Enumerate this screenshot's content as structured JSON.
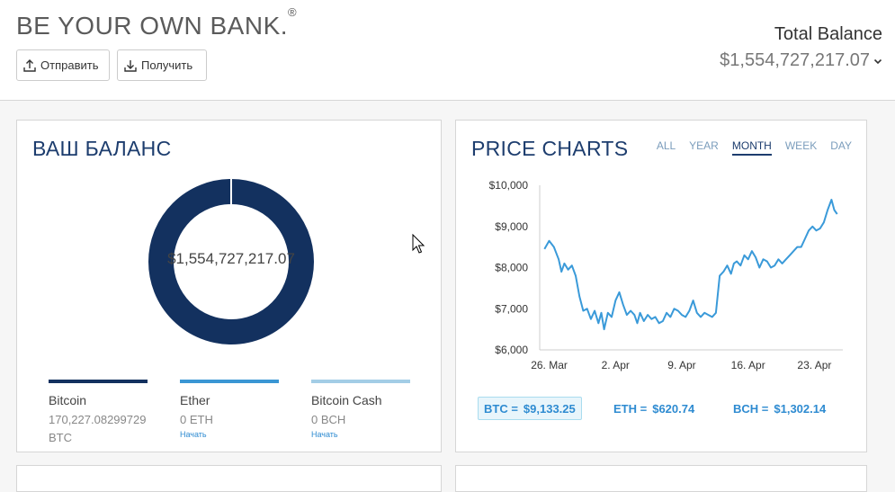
{
  "header": {
    "brand": "BE YOUR OWN BANK.",
    "brand_mark": "®",
    "send_label": "Отправить",
    "receive_label": "Получить",
    "total_balance_label": "Total Balance",
    "total_balance_value": "$1,554,727,217.07"
  },
  "balance_card": {
    "title": "ВАШ БАЛАНС",
    "donut_value": "$1,554,727,217.07",
    "assets": [
      {
        "name": "Bitcoin",
        "amount": "170,227.08299729",
        "unit": "BTC",
        "color": "#13315f",
        "share": 1.0,
        "link": ""
      },
      {
        "name": "Ether",
        "amount": "0",
        "unit": "ETH",
        "color": "#3a96d4",
        "share": 0.0,
        "link": "Начать"
      },
      {
        "name": "Bitcoin Cash",
        "amount": "0",
        "unit": "BCH",
        "color": "#a3cde6",
        "share": 0.0,
        "link": "Начать"
      }
    ]
  },
  "price_card": {
    "title": "PRICE CHARTS",
    "tabs": [
      "ALL",
      "YEAR",
      "MONTH",
      "WEEK",
      "DAY"
    ],
    "active_tab": "MONTH",
    "prices": {
      "btc_label": "BTC =",
      "btc_value": "$9,133.25",
      "eth_label": "ETH =",
      "eth_value": "$620.74",
      "bch_label": "BCH =",
      "bch_value": "$1,302.14"
    }
  },
  "chart_data": {
    "type": "line",
    "title": "",
    "xlabel": "",
    "ylabel": "",
    "ylim": [
      6000,
      10000
    ],
    "y_ticks": [
      "$6,000",
      "$7,000",
      "$8,000",
      "$9,000",
      "$10,000"
    ],
    "x_ticks": [
      "26. Mar",
      "2. Apr",
      "9. Apr",
      "16. Apr",
      "23. Apr"
    ],
    "x_tick_days": [
      0,
      7,
      14,
      21,
      28
    ],
    "grid": false,
    "series": [
      {
        "color": "#3a9ad9",
        "x": [
          -0.5,
          0,
          0.5,
          1,
          1.3,
          1.6,
          2,
          2.4,
          2.8,
          3.2,
          3.6,
          4,
          4.4,
          4.8,
          5.2,
          5.5,
          5.8,
          6.2,
          6.6,
          7,
          7.4,
          7.8,
          8.2,
          8.6,
          9,
          9.3,
          9.6,
          10,
          10.4,
          10.8,
          11.2,
          11.6,
          12,
          12.4,
          12.8,
          13.2,
          13.6,
          14,
          14.4,
          14.8,
          15.2,
          15.6,
          16,
          16.4,
          16.8,
          17.2,
          17.6,
          18,
          18.4,
          18.8,
          19.2,
          19.5,
          19.8,
          20.2,
          20.6,
          21,
          21.4,
          21.8,
          22.2,
          22.6,
          23,
          23.4,
          23.8,
          24.2,
          24.6,
          25,
          25.4,
          25.8,
          26.2,
          26.6,
          27,
          27.4,
          27.8,
          28.2,
          28.6,
          29,
          29.4,
          29.8,
          30.1,
          30.4
        ],
        "y": [
          8450,
          8650,
          8500,
          8200,
          7900,
          8100,
          7950,
          8050,
          7800,
          7300,
          6950,
          7000,
          6750,
          6950,
          6650,
          6900,
          6500,
          6900,
          6800,
          7200,
          7400,
          7100,
          6850,
          6950,
          6850,
          6650,
          6900,
          6700,
          6850,
          6750,
          6800,
          6650,
          6700,
          6900,
          6800,
          7000,
          6950,
          6850,
          6800,
          6950,
          7200,
          6900,
          6800,
          6900,
          6850,
          6800,
          6900,
          7800,
          7900,
          8050,
          7850,
          8100,
          8150,
          8050,
          8300,
          8200,
          8400,
          8250,
          8000,
          8200,
          8150,
          8000,
          8050,
          8200,
          8100,
          8200,
          8300,
          8400,
          8500,
          8500,
          8700,
          8900,
          9000,
          8900,
          8950,
          9100,
          9400,
          9650,
          9400,
          9300
        ]
      }
    ]
  }
}
